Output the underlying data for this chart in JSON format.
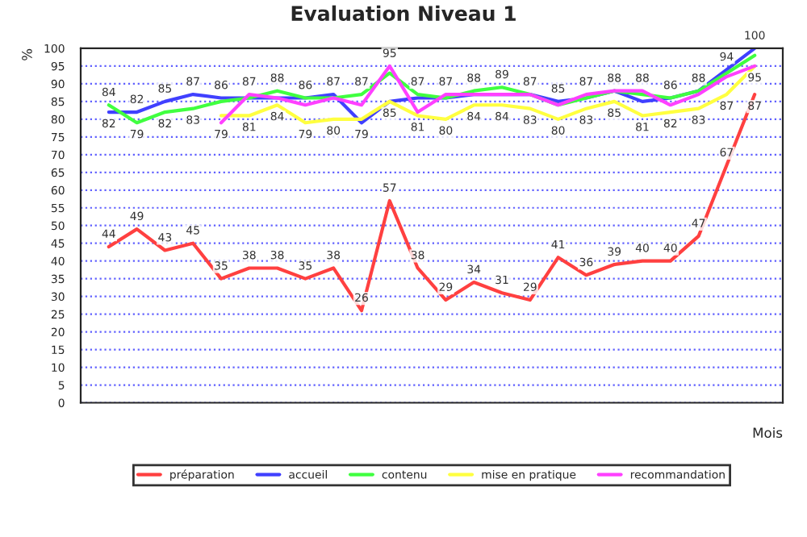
{
  "chart_data": {
    "type": "line",
    "title": "Evaluation Niveau 1",
    "xlabel": "Mois",
    "ylabel": "%",
    "categories": [
      null,
      null,
      null,
      null,
      null,
      null,
      null,
      null,
      null,
      null,
      null,
      null,
      null,
      null,
      null,
      null,
      null,
      null,
      null,
      null,
      null,
      null,
      null,
      null
    ],
    "series": [
      {
        "name": "préparation",
        "color": "#ff4040",
        "values": [
          44,
          49,
          43,
          45,
          35,
          38,
          38,
          35,
          38,
          26,
          57,
          38,
          29,
          34,
          31,
          29,
          41,
          36,
          39,
          40,
          40,
          47,
          67,
          87
        ],
        "value_labels": [
          "44",
          "49",
          "43",
          "45",
          "35",
          "38",
          "38",
          "35",
          "38",
          "26",
          "57",
          "38",
          "29",
          "34",
          "31",
          "29",
          "41",
          "36",
          "39",
          "40",
          "40",
          "47",
          "67",
          "87"
        ]
      },
      {
        "name": "accueil",
        "color": "#4040ff",
        "values": [
          82,
          82,
          85,
          87,
          86,
          86,
          86,
          86,
          87,
          79,
          85,
          86,
          86,
          87,
          87,
          87,
          85,
          86,
          88,
          85,
          86,
          88,
          94,
          100
        ],
        "value_labels": [
          "82",
          "82",
          "85",
          "87",
          "86",
          null,
          null,
          "86",
          "87",
          "79",
          "85",
          null,
          null,
          null,
          null,
          "87",
          "85",
          null,
          "88",
          null,
          "86",
          "88",
          "94",
          "100"
        ]
      },
      {
        "name": "contenu",
        "color": "#40ff40",
        "values": [
          84,
          79,
          82,
          83,
          85,
          86,
          88,
          86,
          86,
          87,
          93,
          87,
          86,
          88,
          89,
          87,
          84,
          86,
          88,
          87,
          86,
          88,
          93,
          98
        ],
        "value_labels": [
          "84",
          "79",
          "82",
          "83",
          null,
          null,
          "88",
          null,
          null,
          "87",
          null,
          "87",
          null,
          "88",
          "89",
          null,
          null,
          null,
          null,
          null,
          null,
          null,
          null,
          null
        ]
      },
      {
        "name": "mise en pratique",
        "color": "#ffff40",
        "values": [
          null,
          null,
          null,
          null,
          81,
          81,
          84,
          79,
          80,
          80,
          85,
          81,
          80,
          84,
          84,
          83,
          80,
          83,
          85,
          81,
          82,
          83,
          87,
          95
        ],
        "value_labels": [
          null,
          null,
          null,
          null,
          null,
          "81",
          "84",
          "79",
          "80",
          null,
          null,
          "81",
          "80",
          "84",
          "84",
          "83",
          "80",
          "83",
          "85",
          "81",
          "82",
          "83",
          "87",
          "95"
        ]
      },
      {
        "name": "recommandation",
        "color": "#ff40ff",
        "values": [
          null,
          null,
          null,
          null,
          79,
          87,
          86,
          84,
          86,
          84,
          95,
          82,
          87,
          87,
          87,
          87,
          84,
          87,
          88,
          88,
          84,
          87,
          92,
          95
        ],
        "value_labels": [
          null,
          null,
          null,
          null,
          "79",
          "87",
          null,
          null,
          null,
          null,
          "95",
          null,
          "87",
          null,
          null,
          null,
          null,
          "87",
          null,
          "88",
          null,
          null,
          null,
          null
        ]
      }
    ],
    "ylim": [
      0,
      100
    ],
    "yticks": [
      0,
      5,
      10,
      15,
      20,
      25,
      30,
      35,
      40,
      45,
      50,
      55,
      60,
      65,
      70,
      75,
      80,
      85,
      90,
      95,
      100
    ],
    "grid": "y",
    "legend": "bottom"
  }
}
